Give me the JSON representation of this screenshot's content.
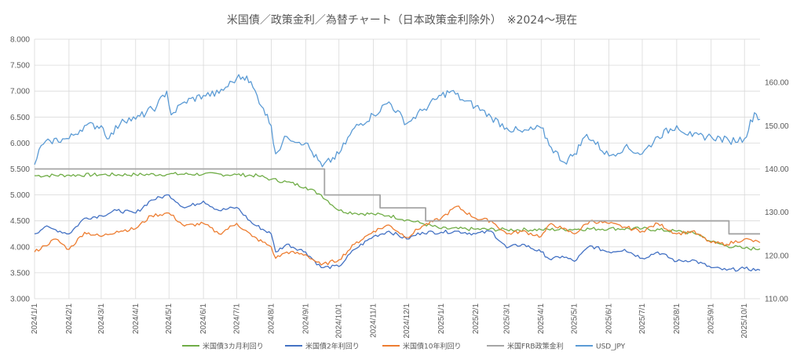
{
  "chart_data": {
    "type": "line",
    "title": "米国債／政策金利／為替チャート（日本政策金利除外）　※2024～現在",
    "x_tick_labels": [
      "2024/1/1",
      "2024/2/1",
      "2024/3/1",
      "2024/4/1",
      "2024/5/1",
      "2024/6/1",
      "2024/7/1",
      "2024/8/1",
      "2024/9/1",
      "2024/10/1",
      "2024/11/1",
      "2024/12/1",
      "2025/1/1",
      "2025/2/1",
      "2025/3/1",
      "2025/4/1",
      "2025/5/1",
      "2025/6/1",
      "2025/7/1",
      "2025/8/1",
      "2025/9/1",
      "2025/10/1"
    ],
    "x_range": [
      "2024-01-01",
      "2025-10-15"
    ],
    "y_left": {
      "min": 3.0,
      "max": 8.0,
      "step": 0.5,
      "tick_labels": [
        "3.000",
        "3.500",
        "4.000",
        "4.500",
        "5.000",
        "5.500",
        "6.000",
        "6.500",
        "7.000",
        "7.500",
        "8.000"
      ]
    },
    "y_right": {
      "min": 110,
      "max": 170,
      "step": 10,
      "tick_labels": [
        "110.00",
        "120.00",
        "130.00",
        "140.00",
        "150.00",
        "160.00"
      ]
    },
    "legend_position": "bottom",
    "grid": true,
    "series": [
      {
        "name": "米国債3カ月利回り",
        "color": "#70ad47",
        "axis": "left",
        "points": [
          [
            "2024-01-01",
            5.37
          ],
          [
            "2024-02-01",
            5.38
          ],
          [
            "2024-03-01",
            5.39
          ],
          [
            "2024-04-01",
            5.39
          ],
          [
            "2024-05-01",
            5.4
          ],
          [
            "2024-06-01",
            5.4
          ],
          [
            "2024-07-01",
            5.39
          ],
          [
            "2024-07-20",
            5.37
          ],
          [
            "2024-08-01",
            5.3
          ],
          [
            "2024-08-15",
            5.25
          ],
          [
            "2024-09-01",
            5.15
          ],
          [
            "2024-09-15",
            5.0
          ],
          [
            "2024-10-01",
            4.7
          ],
          [
            "2024-10-15",
            4.65
          ],
          [
            "2024-11-01",
            4.63
          ],
          [
            "2024-11-15",
            4.6
          ],
          [
            "2024-12-01",
            4.52
          ],
          [
            "2024-12-15",
            4.45
          ],
          [
            "2025-01-01",
            4.35
          ],
          [
            "2025-02-01",
            4.34
          ],
          [
            "2025-03-01",
            4.33
          ],
          [
            "2025-04-01",
            4.33
          ],
          [
            "2025-05-01",
            4.34
          ],
          [
            "2025-06-01",
            4.35
          ],
          [
            "2025-07-01",
            4.35
          ],
          [
            "2025-08-01",
            4.3
          ],
          [
            "2025-08-20",
            4.25
          ],
          [
            "2025-09-01",
            4.1
          ],
          [
            "2025-09-15",
            4.02
          ],
          [
            "2025-10-01",
            3.97
          ],
          [
            "2025-10-15",
            3.96
          ]
        ]
      },
      {
        "name": "米国債2年利回り",
        "color": "#4472c4",
        "axis": "left",
        "points": [
          [
            "2024-01-01",
            4.25
          ],
          [
            "2024-01-10",
            4.38
          ],
          [
            "2024-01-20",
            4.33
          ],
          [
            "2024-02-01",
            4.25
          ],
          [
            "2024-02-15",
            4.55
          ],
          [
            "2024-03-01",
            4.6
          ],
          [
            "2024-03-15",
            4.7
          ],
          [
            "2024-04-01",
            4.65
          ],
          [
            "2024-04-15",
            4.9
          ],
          [
            "2024-05-01",
            5.0
          ],
          [
            "2024-05-15",
            4.75
          ],
          [
            "2024-06-01",
            4.88
          ],
          [
            "2024-06-15",
            4.7
          ],
          [
            "2024-07-01",
            4.76
          ],
          [
            "2024-07-15",
            4.45
          ],
          [
            "2024-08-01",
            4.25
          ],
          [
            "2024-08-05",
            3.9
          ],
          [
            "2024-08-15",
            4.05
          ],
          [
            "2024-09-01",
            3.9
          ],
          [
            "2024-09-15",
            3.6
          ],
          [
            "2024-10-01",
            3.62
          ],
          [
            "2024-10-15",
            3.95
          ],
          [
            "2024-11-01",
            4.2
          ],
          [
            "2024-11-15",
            4.3
          ],
          [
            "2024-12-01",
            4.15
          ],
          [
            "2024-12-15",
            4.28
          ],
          [
            "2025-01-01",
            4.28
          ],
          [
            "2025-01-15",
            4.3
          ],
          [
            "2025-02-01",
            4.25
          ],
          [
            "2025-02-15",
            4.3
          ],
          [
            "2025-03-01",
            3.98
          ],
          [
            "2025-03-15",
            4.05
          ],
          [
            "2025-04-01",
            3.9
          ],
          [
            "2025-04-10",
            3.75
          ],
          [
            "2025-04-20",
            3.82
          ],
          [
            "2025-05-01",
            3.72
          ],
          [
            "2025-05-15",
            4.02
          ],
          [
            "2025-06-01",
            3.9
          ],
          [
            "2025-06-15",
            3.95
          ],
          [
            "2025-07-01",
            3.78
          ],
          [
            "2025-07-15",
            3.9
          ],
          [
            "2025-08-01",
            3.72
          ],
          [
            "2025-08-15",
            3.75
          ],
          [
            "2025-09-01",
            3.6
          ],
          [
            "2025-09-15",
            3.55
          ],
          [
            "2025-10-01",
            3.58
          ],
          [
            "2025-10-15",
            3.55
          ]
        ]
      },
      {
        "name": "米国債10年利回り",
        "color": "#ed7d31",
        "axis": "left",
        "points": [
          [
            "2024-01-01",
            3.9
          ],
          [
            "2024-01-10",
            4.02
          ],
          [
            "2024-01-20",
            4.15
          ],
          [
            "2024-02-01",
            3.95
          ],
          [
            "2024-02-15",
            4.28
          ],
          [
            "2024-03-01",
            4.2
          ],
          [
            "2024-03-15",
            4.3
          ],
          [
            "2024-04-01",
            4.35
          ],
          [
            "2024-04-15",
            4.6
          ],
          [
            "2024-05-01",
            4.65
          ],
          [
            "2024-05-15",
            4.4
          ],
          [
            "2024-06-01",
            4.45
          ],
          [
            "2024-06-15",
            4.25
          ],
          [
            "2024-07-01",
            4.45
          ],
          [
            "2024-07-15",
            4.2
          ],
          [
            "2024-08-01",
            4.0
          ],
          [
            "2024-08-05",
            3.78
          ],
          [
            "2024-08-15",
            3.9
          ],
          [
            "2024-09-01",
            3.85
          ],
          [
            "2024-09-15",
            3.65
          ],
          [
            "2024-10-01",
            3.75
          ],
          [
            "2024-10-15",
            4.05
          ],
          [
            "2024-11-01",
            4.3
          ],
          [
            "2024-11-15",
            4.42
          ],
          [
            "2024-12-01",
            4.18
          ],
          [
            "2024-12-15",
            4.4
          ],
          [
            "2025-01-01",
            4.55
          ],
          [
            "2025-01-15",
            4.78
          ],
          [
            "2025-02-01",
            4.55
          ],
          [
            "2025-02-15",
            4.5
          ],
          [
            "2025-03-01",
            4.25
          ],
          [
            "2025-03-15",
            4.3
          ],
          [
            "2025-04-01",
            4.2
          ],
          [
            "2025-04-10",
            4.45
          ],
          [
            "2025-04-20",
            4.35
          ],
          [
            "2025-05-01",
            4.25
          ],
          [
            "2025-05-15",
            4.5
          ],
          [
            "2025-06-01",
            4.45
          ],
          [
            "2025-06-15",
            4.38
          ],
          [
            "2025-07-01",
            4.3
          ],
          [
            "2025-07-15",
            4.45
          ],
          [
            "2025-08-01",
            4.25
          ],
          [
            "2025-08-15",
            4.3
          ],
          [
            "2025-09-01",
            4.08
          ],
          [
            "2025-09-15",
            4.05
          ],
          [
            "2025-10-01",
            4.15
          ],
          [
            "2025-10-15",
            4.08
          ]
        ]
      },
      {
        "name": "米国FRB政策金利",
        "color": "#a5a5a5",
        "axis": "left",
        "step": true,
        "points": [
          [
            "2024-01-01",
            5.5
          ],
          [
            "2024-09-18",
            5.5
          ],
          [
            "2024-09-18",
            5.0
          ],
          [
            "2024-11-07",
            5.0
          ],
          [
            "2024-11-07",
            4.75
          ],
          [
            "2024-12-18",
            4.75
          ],
          [
            "2024-12-18",
            4.5
          ],
          [
            "2025-09-17",
            4.5
          ],
          [
            "2025-09-17",
            4.25
          ],
          [
            "2025-10-15",
            4.25
          ]
        ]
      },
      {
        "name": "USD_JPY",
        "color": "#5b9bd5",
        "axis": "right",
        "points": [
          [
            "2024-01-01",
            141.0
          ],
          [
            "2024-01-05",
            144.5
          ],
          [
            "2024-01-15",
            146.5
          ],
          [
            "2024-02-01",
            147.0
          ],
          [
            "2024-02-15",
            150.0
          ],
          [
            "2024-03-01",
            150.0
          ],
          [
            "2024-03-08",
            147.0
          ],
          [
            "2024-03-20",
            151.5
          ],
          [
            "2024-04-01",
            151.5
          ],
          [
            "2024-04-20",
            154.5
          ],
          [
            "2024-04-29",
            158.0
          ],
          [
            "2024-05-03",
            152.5
          ],
          [
            "2024-05-15",
            155.5
          ],
          [
            "2024-06-01",
            157.0
          ],
          [
            "2024-06-15",
            157.5
          ],
          [
            "2024-07-01",
            161.0
          ],
          [
            "2024-07-10",
            161.5
          ],
          [
            "2024-07-25",
            154.0
          ],
          [
            "2024-08-01",
            150.0
          ],
          [
            "2024-08-05",
            143.5
          ],
          [
            "2024-08-15",
            147.5
          ],
          [
            "2024-09-01",
            146.0
          ],
          [
            "2024-09-16",
            140.5
          ],
          [
            "2024-10-01",
            143.5
          ],
          [
            "2024-10-15",
            149.5
          ],
          [
            "2024-11-01",
            152.5
          ],
          [
            "2024-11-15",
            155.5
          ],
          [
            "2024-12-01",
            150.5
          ],
          [
            "2024-12-15",
            153.5
          ],
          [
            "2025-01-01",
            157.0
          ],
          [
            "2025-01-10",
            158.0
          ],
          [
            "2025-01-20",
            156.0
          ],
          [
            "2025-02-01",
            154.5
          ],
          [
            "2025-02-15",
            152.0
          ],
          [
            "2025-03-01",
            149.5
          ],
          [
            "2025-03-15",
            148.5
          ],
          [
            "2025-04-01",
            149.5
          ],
          [
            "2025-04-10",
            145.0
          ],
          [
            "2025-04-22",
            141.5
          ],
          [
            "2025-05-01",
            143.5
          ],
          [
            "2025-05-12",
            148.0
          ],
          [
            "2025-06-01",
            143.0
          ],
          [
            "2025-06-15",
            145.0
          ],
          [
            "2025-07-01",
            143.5
          ],
          [
            "2025-07-15",
            147.5
          ],
          [
            "2025-08-01",
            150.0
          ],
          [
            "2025-08-15",
            147.5
          ],
          [
            "2025-09-01",
            147.5
          ],
          [
            "2025-09-17",
            146.5
          ],
          [
            "2025-10-01",
            147.0
          ],
          [
            "2025-10-10",
            153.0
          ],
          [
            "2025-10-15",
            151.5
          ]
        ]
      }
    ]
  }
}
